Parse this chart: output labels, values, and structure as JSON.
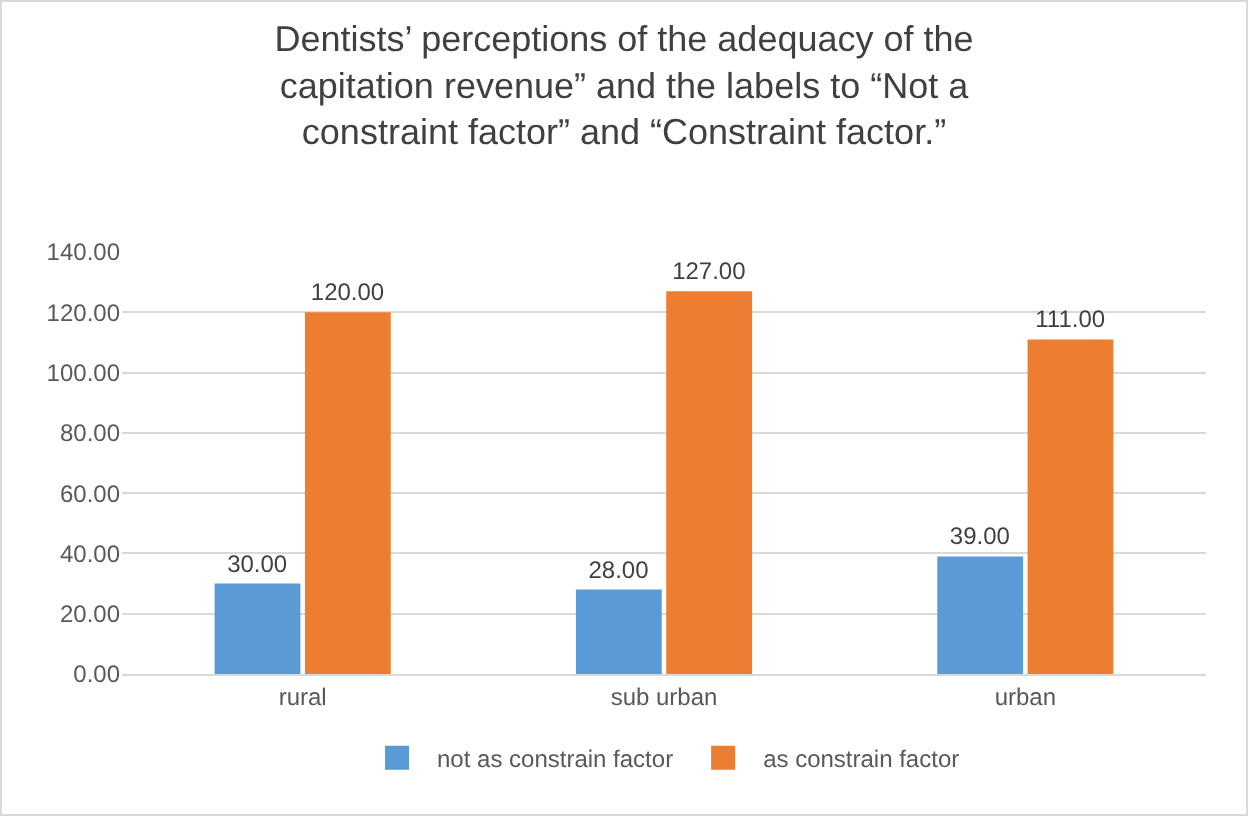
{
  "chart_data": {
    "type": "bar",
    "title": "Dentists’ perceptions of the adequacy of the\ncapitation revenue” and the labels to “Not a\nconstraint factor” and “Constraint factor.”",
    "categories": [
      "rural",
      "sub urban",
      "urban"
    ],
    "series": [
      {
        "name": "not as constrain factor",
        "color": "#5b9bd5",
        "values": [
          30,
          28,
          39
        ],
        "value_labels": [
          "30.00",
          "28.00",
          "39.00"
        ]
      },
      {
        "name": "as constrain factor",
        "color": "#ed7d31",
        "values": [
          120,
          127,
          111
        ],
        "value_labels": [
          "120.00",
          "127.00",
          "111.00"
        ]
      }
    ],
    "ylim": [
      0,
      140
    ],
    "yticks": [
      {
        "value": 0,
        "label": "0.00"
      },
      {
        "value": 20,
        "label": "20.00"
      },
      {
        "value": 40,
        "label": "40.00"
      },
      {
        "value": 60,
        "label": "60.00"
      },
      {
        "value": 80,
        "label": "80.00"
      },
      {
        "value": 100,
        "label": "100.00"
      },
      {
        "value": 120,
        "label": "120.00"
      },
      {
        "value": 140,
        "label": "140.00"
      }
    ],
    "grid": "y",
    "legend": "bottom"
  }
}
